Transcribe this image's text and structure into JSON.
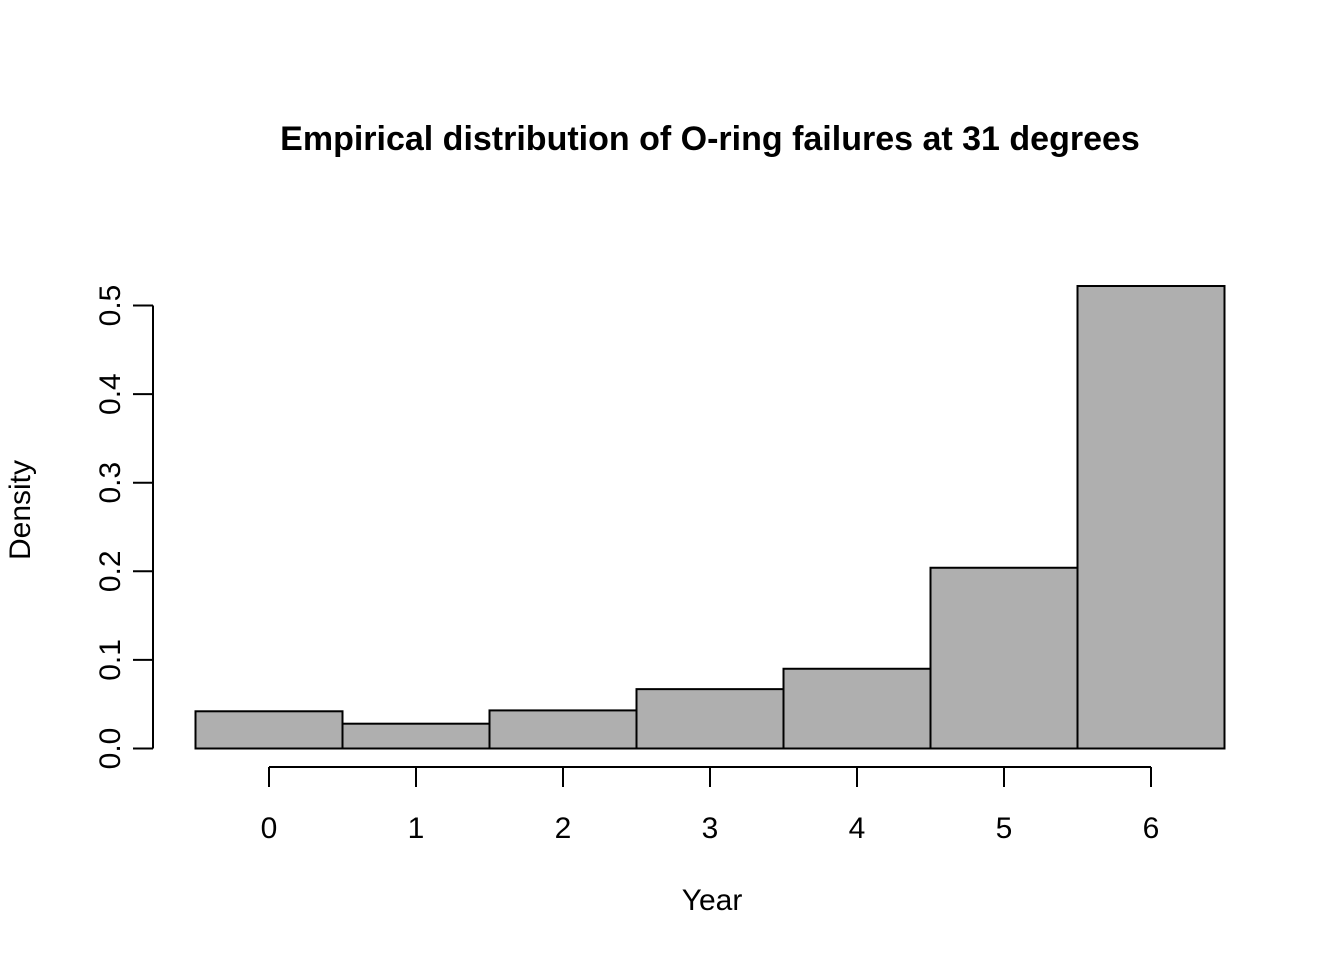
{
  "title": "Empirical distribution of O-ring failures at 31 degrees",
  "chart_data": {
    "type": "bar",
    "subtype": "histogram",
    "title": "Empirical distribution of O-ring failures at 31 degrees",
    "xlabel": "Year",
    "ylabel": "Density",
    "categories": [
      0,
      1,
      2,
      3,
      4,
      5,
      6
    ],
    "values": [
      0.042,
      0.028,
      0.043,
      0.067,
      0.09,
      0.204,
      0.522
    ],
    "bar_width": 1,
    "xlim": [
      -0.5,
      6.5
    ],
    "ylim": [
      0,
      0.53
    ],
    "grid": false,
    "legend": "none",
    "x_ticks": {
      "values": [
        0,
        1,
        2,
        3,
        4,
        5,
        6
      ],
      "labels": [
        "0",
        "1",
        "2",
        "3",
        "4",
        "5",
        "6"
      ]
    },
    "y_ticks": {
      "values": [
        0.0,
        0.1,
        0.2,
        0.3,
        0.4,
        0.5
      ],
      "labels": [
        "0.0",
        "0.1",
        "0.2",
        "0.3",
        "0.4",
        "0.5"
      ]
    },
    "colors": {
      "bar_fill": "#AFAFAF",
      "bar_stroke": "#000000",
      "axis": "#000000",
      "text": "#000000",
      "background": "#FFFFFF"
    }
  }
}
